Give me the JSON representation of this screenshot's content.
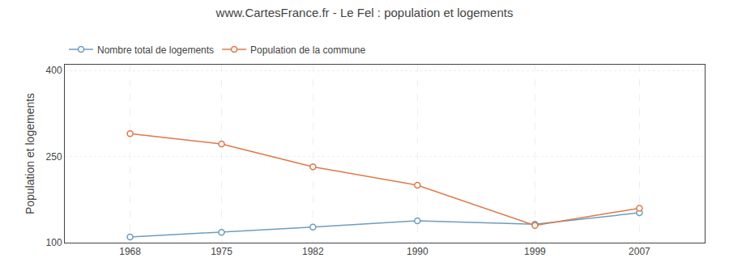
{
  "chart_data": {
    "type": "line",
    "title": "www.CartesFrance.fr - Le Fel : population et logements",
    "ylabel": "Population et logements",
    "x": [
      1968,
      1975,
      1982,
      1990,
      1999,
      2007
    ],
    "series": [
      {
        "name": "Nombre total de logements",
        "color": "#6b9dc2",
        "values": [
          110,
          118,
          127,
          138,
          132,
          152
        ],
        "marker": "circle",
        "line_style": "solid"
      },
      {
        "name": "Population de la commune",
        "color": "#e07848",
        "values": [
          290,
          272,
          232,
          200,
          130,
          160
        ],
        "marker": "circle",
        "line_style": "solid"
      }
    ],
    "xlim": [
      1963,
      2012
    ],
    "xticks": [
      1968,
      1975,
      1982,
      1990,
      1999,
      2007
    ],
    "ylim": [
      100,
      410
    ],
    "yticks": [
      100,
      250,
      400
    ],
    "grid": true,
    "legend": "upper left"
  }
}
